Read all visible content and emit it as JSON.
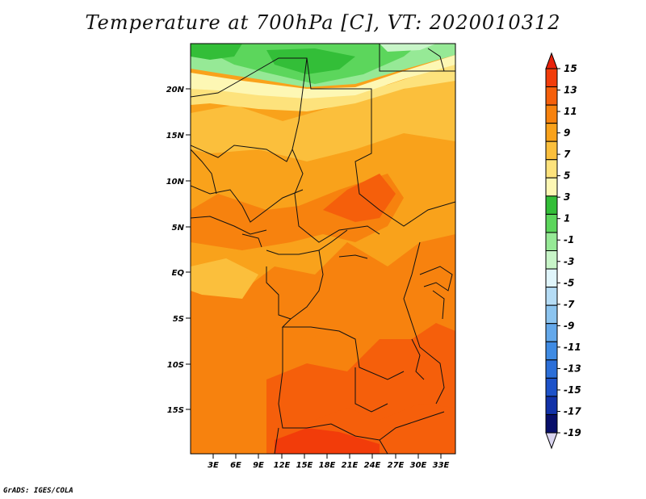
{
  "title": "Temperature at 700hPa [C], VT: 2020010312",
  "footer": "GrADS: IGES/COLA",
  "lat_ticks": [
    "20N",
    "15N",
    "10N",
    "5N",
    "EQ",
    "5S",
    "10S",
    "15S"
  ],
  "lon_ticks": [
    "3E",
    "6E",
    "9E",
    "12E",
    "15E",
    "18E",
    "21E",
    "24E",
    "27E",
    "30E",
    "33E"
  ],
  "colorbar": {
    "labels": [
      "15",
      "13",
      "11",
      "9",
      "7",
      "5",
      "3",
      "1",
      "-1",
      "-3",
      "-5",
      "-7",
      "-9",
      "-11",
      "-13",
      "-15",
      "-17",
      "-19"
    ],
    "colors": [
      "#e8220c",
      "#f23c0a",
      "#f55f0b",
      "#f7820e",
      "#f9a21b",
      "#fbbf3c",
      "#fde27c",
      "#fdf7b4",
      "#33be38",
      "#5cd65c",
      "#96e996",
      "#c8f5c8",
      "#e0f5fb",
      "#b5dcf5",
      "#8cc4ef",
      "#64a8ea",
      "#3f8be3",
      "#2c6fd8",
      "#1d52c9",
      "#1232a8",
      "#080f6a",
      "#d9d4ef"
    ]
  }
}
